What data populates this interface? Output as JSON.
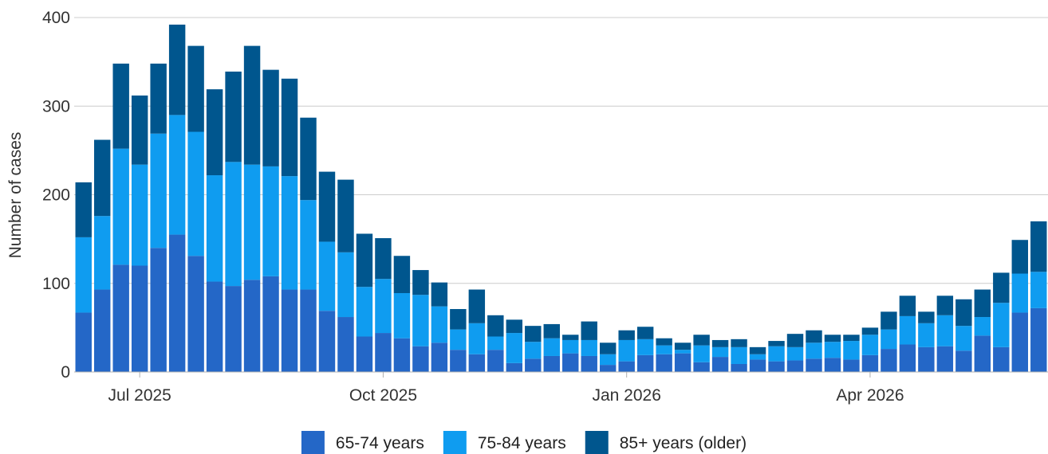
{
  "chart_data": {
    "type": "bar",
    "stacked": true,
    "ylabel": "Number of cases",
    "xlabel": "",
    "ylim": [
      0,
      400
    ],
    "yticks": [
      0,
      100,
      200,
      300,
      400
    ],
    "xticks": [
      {
        "label": "Jul 2025",
        "index": 3
      },
      {
        "label": "Oct 2025",
        "index": 16
      },
      {
        "label": "Jan 2026",
        "index": 29
      },
      {
        "label": "Apr 2026",
        "index": 42
      }
    ],
    "grid": true,
    "legend_position": "bottom",
    "series": [
      {
        "name": "65-74 years",
        "color": "#2467c7",
        "values": [
          67,
          93,
          121,
          120,
          140,
          155,
          131,
          102,
          97,
          104,
          108,
          93,
          93,
          69,
          62,
          40,
          44,
          38,
          29,
          33,
          25,
          20,
          25,
          10,
          15,
          18,
          21,
          18,
          8,
          12,
          19,
          20,
          21,
          11,
          17,
          9,
          14,
          12,
          13,
          15,
          16,
          14,
          19,
          26,
          31,
          28,
          29,
          24,
          41,
          28,
          67,
          72
        ]
      },
      {
        "name": "75-84 years",
        "color": "#0f9cf0",
        "values": [
          85,
          83,
          131,
          114,
          129,
          135,
          140,
          120,
          140,
          130,
          124,
          128,
          101,
          78,
          73,
          56,
          61,
          51,
          58,
          41,
          23,
          35,
          15,
          34,
          19,
          20,
          15,
          18,
          12,
          24,
          18,
          10,
          4,
          19,
          11,
          19,
          6,
          17,
          15,
          18,
          18,
          21,
          23,
          22,
          32,
          27,
          35,
          28,
          21,
          50,
          44,
          41
        ]
      },
      {
        "name": "85+ years (older)",
        "color": "#00568e",
        "values": [
          62,
          86,
          96,
          78,
          79,
          102,
          97,
          97,
          102,
          134,
          109,
          110,
          93,
          79,
          82,
          60,
          46,
          42,
          28,
          27,
          23,
          38,
          24,
          15,
          18,
          16,
          6,
          21,
          13,
          11,
          14,
          8,
          8,
          12,
          8,
          9,
          8,
          6,
          15,
          14,
          8,
          7,
          8,
          20,
          23,
          13,
          22,
          30,
          31,
          34,
          38,
          57
        ]
      }
    ]
  }
}
